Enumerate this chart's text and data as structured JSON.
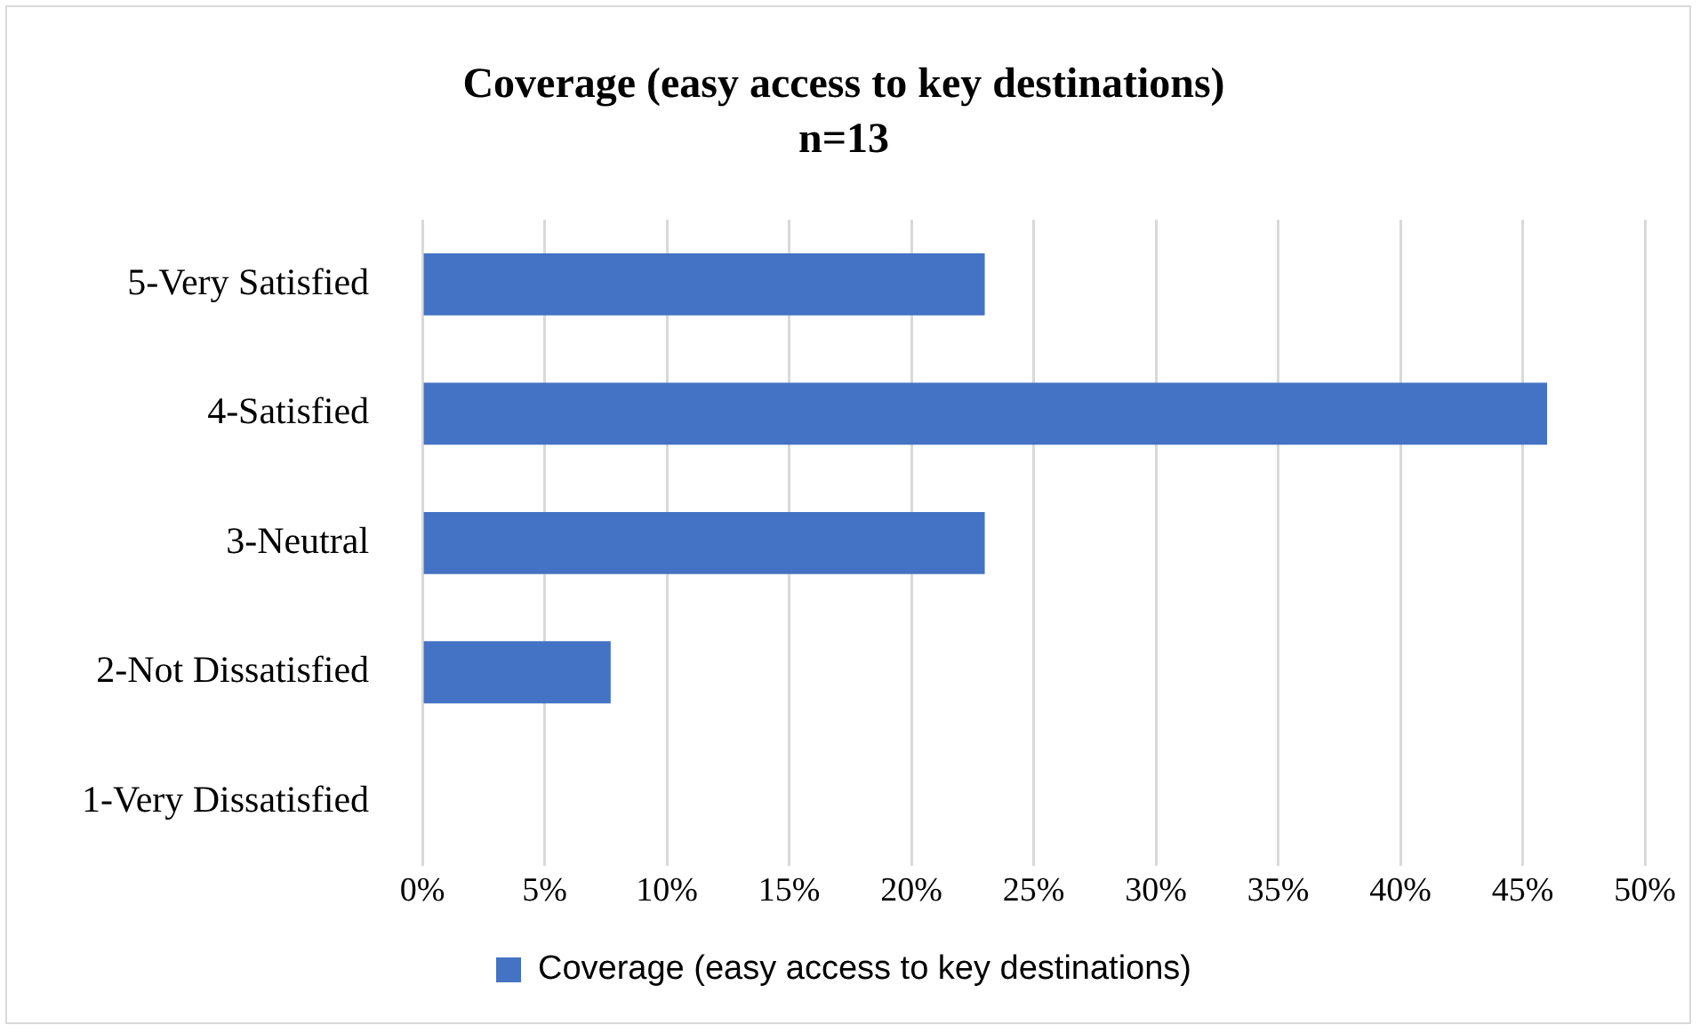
{
  "chart_data": {
    "type": "bar",
    "orientation": "horizontal",
    "title": "Coverage (easy access to key destinations)",
    "subtitle": "n=13",
    "categories": [
      "5-Very Satisfied",
      "4-Satisfied",
      "3-Neutral",
      "2-Not Dissatisfied",
      "1-Very Dissatisfied"
    ],
    "series": [
      {
        "name": "Coverage (easy access to key destinations)",
        "color": "#4472c4",
        "values": [
          23,
          46,
          23,
          7.7,
          0
        ]
      }
    ],
    "xlim": [
      0,
      50
    ],
    "xticks": [
      {
        "value": 0,
        "label": "0%"
      },
      {
        "value": 5,
        "label": "5%"
      },
      {
        "value": 10,
        "label": "10%"
      },
      {
        "value": 15,
        "label": "15%"
      },
      {
        "value": 20,
        "label": "20%"
      },
      {
        "value": 25,
        "label": "25%"
      },
      {
        "value": 30,
        "label": "30%"
      },
      {
        "value": 35,
        "label": "35%"
      },
      {
        "value": 40,
        "label": "40%"
      },
      {
        "value": 45,
        "label": "45%"
      },
      {
        "value": 50,
        "label": "50%"
      }
    ],
    "grid": "x",
    "legend": "bottom"
  }
}
